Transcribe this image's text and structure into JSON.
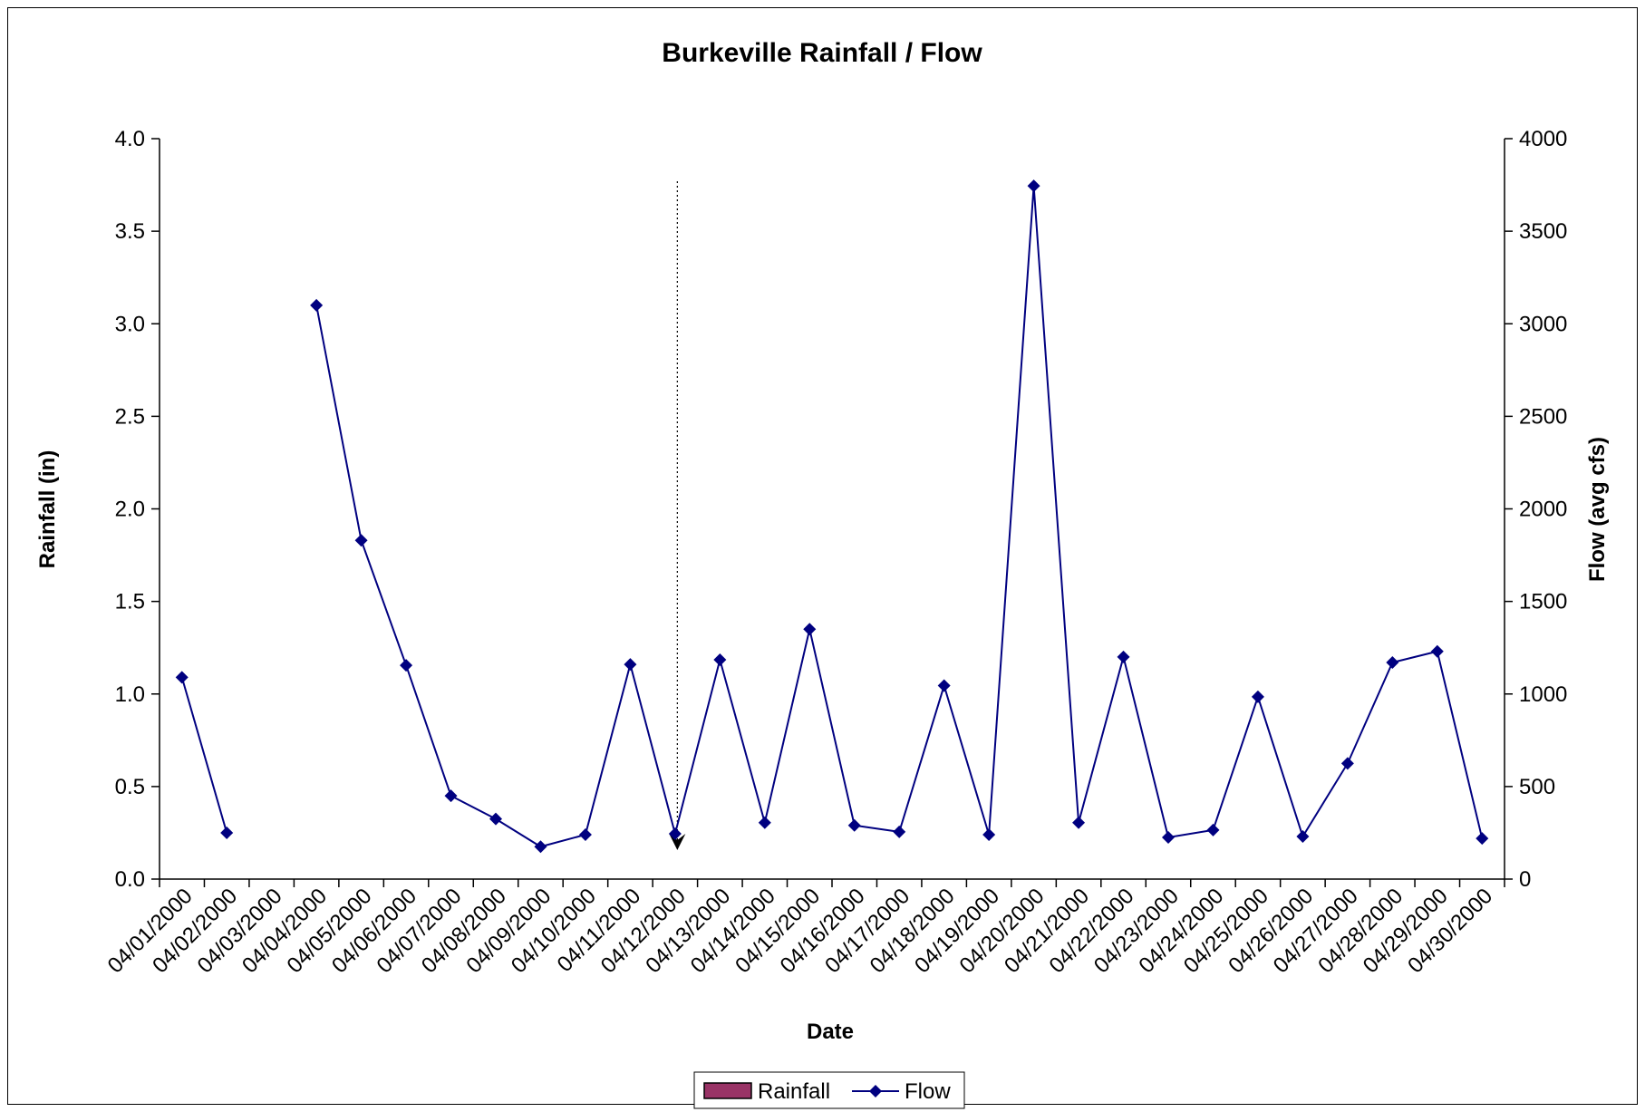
{
  "chart_data": {
    "type": "line",
    "title": "Burkeville Rainfall / Flow",
    "xlabel": "Date",
    "ylabel_left": "Rainfall (in)",
    "ylabel_right": "Flow (avg cfs)",
    "ylim_left": [
      0,
      4.0
    ],
    "ylim_right": [
      0,
      4000
    ],
    "y_ticks_left": [
      "0.0",
      "0.5",
      "1.0",
      "1.5",
      "2.0",
      "2.5",
      "3.0",
      "3.5",
      "4.0"
    ],
    "y_ticks_right": [
      "0",
      "500",
      "1000",
      "1500",
      "2000",
      "2500",
      "3000",
      "3500",
      "4000"
    ],
    "categories": [
      "04/01/2000",
      "04/02/2000",
      "04/03/2000",
      "04/04/2000",
      "04/05/2000",
      "04/06/2000",
      "04/07/2000",
      "04/08/2000",
      "04/09/2000",
      "04/10/2000",
      "04/11/2000",
      "04/12/2000",
      "04/13/2000",
      "04/14/2000",
      "04/15/2000",
      "04/16/2000",
      "04/17/2000",
      "04/18/2000",
      "04/19/2000",
      "04/20/2000",
      "04/21/2000",
      "04/22/2000",
      "04/23/2000",
      "04/24/2000",
      "04/25/2000",
      "04/26/2000",
      "04/27/2000",
      "04/28/2000",
      "04/29/2000",
      "04/30/2000"
    ],
    "series": [
      {
        "name": "Rainfall",
        "type": "bar",
        "axis": "left",
        "color": "#993366",
        "values": [
          0,
          0,
          0,
          0,
          0,
          0,
          0,
          0,
          0,
          0,
          0,
          0,
          0,
          0,
          0,
          0,
          0,
          0,
          0,
          0,
          0,
          0,
          0,
          0,
          0,
          0,
          0,
          0,
          0,
          0
        ]
      },
      {
        "name": "Flow",
        "type": "line",
        "axis": "right",
        "color": "#000080",
        "marker": "diamond",
        "values": [
          1090,
          250,
          null,
          3100,
          1830,
          1155,
          450,
          325,
          175,
          240,
          1160,
          245,
          1185,
          305,
          1350,
          290,
          255,
          1045,
          240,
          3745,
          305,
          1200,
          225,
          265,
          985,
          230,
          625,
          1170,
          1230,
          220
        ]
      }
    ],
    "annotation": {
      "type": "dotted-line-arrow",
      "category": "04/12/2000"
    },
    "legend_position": "bottom",
    "grid": false
  }
}
